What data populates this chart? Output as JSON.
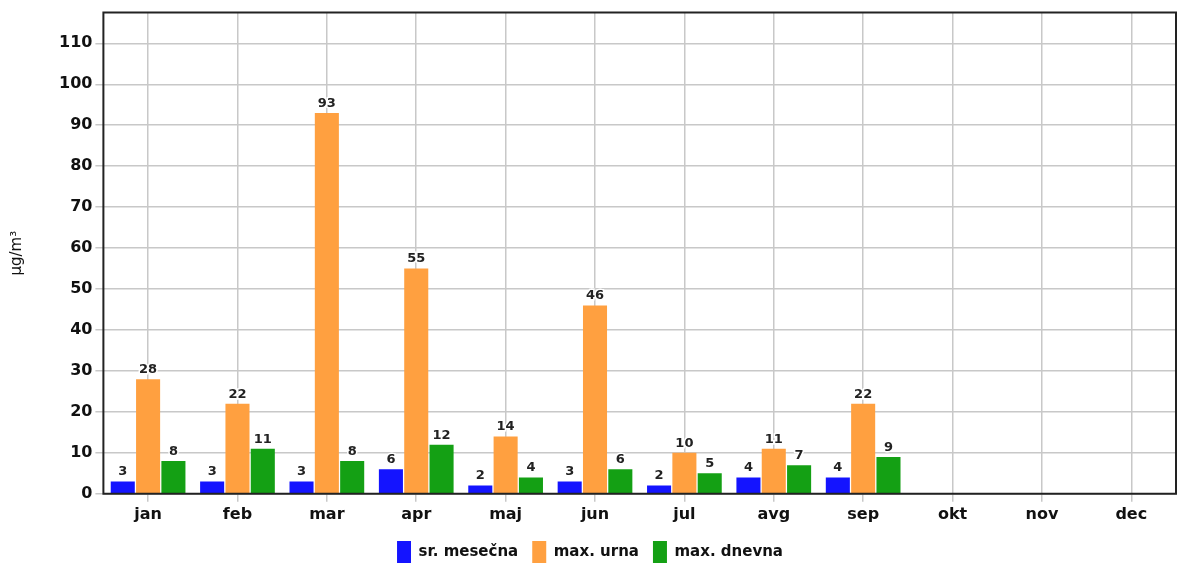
{
  "chart_data": {
    "type": "bar",
    "ylabel": "µg/m³",
    "categories": [
      "jan",
      "feb",
      "mar",
      "apr",
      "maj",
      "jun",
      "jul",
      "avg",
      "sep",
      "okt",
      "nov",
      "dec"
    ],
    "series": [
      {
        "name": "sr. mesečna",
        "color": "#1414ff",
        "values": [
          3,
          3,
          3,
          6,
          2,
          3,
          2,
          4,
          4,
          null,
          null,
          null
        ]
      },
      {
        "name": "max. urna",
        "color": "#ffa040",
        "values": [
          28,
          22,
          93,
          55,
          14,
          46,
          10,
          11,
          22,
          null,
          null,
          null
        ]
      },
      {
        "name": "max. dnevna",
        "color": "#14a014",
        "values": [
          8,
          11,
          8,
          12,
          4,
          6,
          5,
          7,
          9,
          null,
          null,
          null
        ]
      }
    ],
    "ylim": [
      0,
      117.5
    ],
    "yticks": [
      0,
      10,
      20,
      30,
      40,
      50,
      60,
      70,
      80,
      90,
      100,
      110
    ],
    "grid": true,
    "legend": "bottom",
    "data_labels": true
  }
}
